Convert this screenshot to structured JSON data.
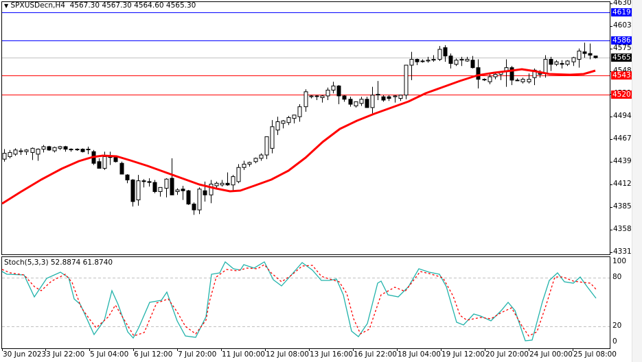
{
  "header": {
    "symbol": "SPXUSDecn,H4",
    "ohlc": "4567.30 4567.30 4564.60 4565.30",
    "title_full": "SPXUSDecn,H4  4567.30 4567.30 4564.60 4565.30"
  },
  "stochastic": {
    "label": "Stoch(5,3,3) 52.8874 61.8740",
    "levels": [
      "100",
      "80",
      "20",
      "0"
    ]
  },
  "price_axis": {
    "ticks": [
      "4630.20",
      "4603.00",
      "4575.80",
      "4548.60",
      "4521.40",
      "4494.20",
      "4467.00",
      "4439.80",
      "4412.60",
      "4385.40",
      "4358.20",
      "4331.00"
    ]
  },
  "price_tags": [
    {
      "label": "4619.59",
      "value": 4619.59,
      "color": "#0000ff",
      "kind": "resistance"
    },
    {
      "label": "4586.00",
      "value": 4586.0,
      "color": "#0000ff",
      "kind": "resistance"
    },
    {
      "label": "4565.30",
      "value": 4565.3,
      "color": "#000000",
      "kind": "current-price"
    },
    {
      "label": "4543.64",
      "value": 4543.64,
      "color": "#ff0000",
      "kind": "support"
    },
    {
      "label": "4520.28",
      "value": 4520.28,
      "color": "#ff0000",
      "kind": "support"
    }
  ],
  "time_axis": {
    "labels": [
      "30 Jun 2023",
      "3 Jul 22:00",
      "5 Jul 04:00",
      "6 Jul 12:00",
      "7 Jul 20:00",
      "11 Jul 00:00",
      "12 Jul 08:00",
      "13 Jul 16:00",
      "16 Jul 22:00",
      "18 Jul 04:00",
      "19 Jul 12:00",
      "20 Jul 20:00",
      "24 Jul 00:00",
      "25 Jul 08:00"
    ]
  },
  "colors": {
    "ma_line": "#ff0000",
    "stoch_main": "#20b2aa",
    "stoch_signal": "#ff0000",
    "bull_candle": "#ffffff",
    "bear_candle": "#000000",
    "grid_level": "#c0c0c0",
    "current_price_line": "#c0c0c0"
  },
  "chart_data": [
    {
      "type": "candlestick",
      "title": "SPXUSDecn,H4",
      "ylim": [
        4331.0,
        4630.2
      ],
      "yticks": [
        4630.2,
        4603.0,
        4575.8,
        4548.6,
        4521.4,
        4494.2,
        4467.0,
        4439.8,
        4412.6,
        4385.4,
        4358.2,
        4331.0
      ],
      "xtick_labels": [
        "30 Jun 2023",
        "3 Jul 22:00",
        "5 Jul 04:00",
        "6 Jul 12:00",
        "7 Jul 20:00",
        "11 Jul 00:00",
        "12 Jul 08:00",
        "13 Jul 16:00",
        "16 Jul 22:00",
        "18 Jul 04:00",
        "19 Jul 12:00",
        "20 Jul 20:00",
        "24 Jul 00:00",
        "25 Jul 08:00"
      ],
      "horizontal_lines": [
        {
          "value": 4619.59,
          "color": "#0000ff"
        },
        {
          "value": 4586.0,
          "color": "#0000ff"
        },
        {
          "value": 4565.3,
          "color": "#c0c0c0"
        },
        {
          "value": 4543.64,
          "color": "#ff0000"
        },
        {
          "value": 4520.28,
          "color": "#ff0000"
        }
      ],
      "candles_ohlc": [
        [
          4443,
          4455,
          4440,
          4450
        ],
        [
          4446,
          4454,
          4444,
          4451
        ],
        [
          4449,
          4456,
          4447,
          4454
        ],
        [
          4452,
          4456,
          4448,
          4453
        ],
        [
          4452,
          4455,
          4448,
          4454
        ],
        [
          4451,
          4457,
          4442,
          4456
        ],
        [
          4449,
          4456,
          4441,
          4455
        ],
        [
          4455,
          4460,
          4451,
          4458
        ],
        [
          4458,
          4459,
          4453,
          4454
        ],
        [
          4453,
          4458,
          4451,
          4457
        ],
        [
          4456,
          4459,
          4454,
          4458
        ],
        [
          4458,
          4459,
          4452,
          4455
        ],
        [
          4455,
          4456,
          4452,
          4455
        ],
        [
          4455,
          4456,
          4453,
          4455
        ],
        [
          4455,
          4456,
          4451,
          4452
        ],
        [
          4455,
          4458,
          4449,
          4455
        ],
        [
          4452,
          4454,
          4436,
          4438
        ],
        [
          4440,
          4444,
          4432,
          4432
        ],
        [
          4432,
          4452,
          4430,
          4446
        ],
        [
          4446,
          4452,
          4436,
          4445
        ],
        [
          4445,
          4446,
          4439,
          4440
        ],
        [
          4438,
          4440,
          4425,
          4425
        ],
        [
          4424,
          4425,
          4414,
          4418
        ],
        [
          4418,
          4419,
          4386,
          4392
        ],
        [
          4394,
          4424,
          4387,
          4417
        ],
        [
          4417,
          4419,
          4409,
          4416
        ],
        [
          4416,
          4420,
          4410,
          4415
        ],
        [
          4415,
          4418,
          4402,
          4404
        ],
        [
          4404,
          4408,
          4398,
          4409
        ],
        [
          4408,
          4420,
          4397,
          4419
        ],
        [
          4420,
          4444,
          4400,
          4400
        ],
        [
          4404,
          4408,
          4400,
          4406
        ],
        [
          4407,
          4411,
          4394,
          4405
        ],
        [
          4405,
          4406,
          4388,
          4389
        ],
        [
          4389,
          4391,
          4376,
          4382
        ],
        [
          4382,
          4409,
          4377,
          4407
        ],
        [
          4405,
          4416,
          4392,
          4400
        ],
        [
          4400,
          4418,
          4390,
          4413
        ],
        [
          4411,
          4416,
          4408,
          4414
        ],
        [
          4412,
          4418,
          4410,
          4414
        ],
        [
          4414,
          4427,
          4411,
          4412
        ],
        [
          4412,
          4424,
          4405,
          4422
        ],
        [
          4416,
          4437,
          4414,
          4433
        ],
        [
          4433,
          4441,
          4430,
          4437
        ],
        [
          4437,
          4440,
          4434,
          4439
        ],
        [
          4440,
          4445,
          4438,
          4444
        ],
        [
          4444,
          4450,
          4441,
          4448
        ],
        [
          4448,
          4468,
          4443,
          4470
        ],
        [
          4456,
          4490,
          4450,
          4482
        ],
        [
          4478,
          4494,
          4472,
          4488
        ],
        [
          4486,
          4490,
          4480,
          4489
        ],
        [
          4487,
          4495,
          4484,
          4493
        ],
        [
          4492,
          4496,
          4486,
          4496
        ],
        [
          4494,
          4509,
          4488,
          4506
        ],
        [
          4506,
          4527,
          4500,
          4524
        ],
        [
          4518,
          4520,
          4516,
          4519
        ],
        [
          4519,
          4520,
          4514,
          4519
        ],
        [
          4517,
          4520,
          4511,
          4519
        ],
        [
          4519,
          4529,
          4514,
          4526
        ],
        [
          4526,
          4536,
          4522,
          4531
        ],
        [
          4531,
          4532,
          4509,
          4519
        ],
        [
          4519,
          4520,
          4512,
          4515
        ],
        [
          4515,
          4518,
          4506,
          4509
        ],
        [
          4507,
          4512,
          4505,
          4512
        ],
        [
          4510,
          4518,
          4507,
          4515
        ],
        [
          4515,
          4518,
          4506,
          4505
        ],
        [
          4505,
          4530,
          4498,
          4520
        ],
        [
          4520,
          4537,
          4514,
          4521
        ],
        [
          4518,
          4520,
          4512,
          4514
        ],
        [
          4518,
          4520,
          4513,
          4516
        ],
        [
          4518,
          4520,
          4511,
          4519
        ],
        [
          4516,
          4520,
          4513,
          4520
        ],
        [
          4520,
          4551,
          4515,
          4556
        ],
        [
          4556,
          4572,
          4538,
          4563
        ],
        [
          4563,
          4564,
          4556,
          4560
        ],
        [
          4561,
          4563,
          4559,
          4561
        ],
        [
          4561,
          4566,
          4559,
          4562
        ],
        [
          4562,
          4568,
          4560,
          4563
        ],
        [
          4563,
          4579,
          4561,
          4575
        ],
        [
          4577,
          4580,
          4560,
          4567
        ],
        [
          4567,
          4570,
          4552,
          4558
        ],
        [
          4557,
          4564,
          4555,
          4562
        ],
        [
          4562,
          4566,
          4555,
          4563
        ],
        [
          4561,
          4566,
          4560,
          4563
        ],
        [
          4562,
          4567,
          4552,
          4553
        ],
        [
          4553,
          4563,
          4528,
          4539
        ],
        [
          4539,
          4540,
          4537,
          4539
        ],
        [
          4536,
          4545,
          4533,
          4542
        ],
        [
          4542,
          4548,
          4539,
          4545
        ],
        [
          4545,
          4549,
          4538,
          4548
        ],
        [
          4548,
          4563,
          4530,
          4553
        ],
        [
          4553,
          4555,
          4532,
          4538
        ],
        [
          4538,
          4540,
          4537,
          4538
        ],
        [
          4536,
          4541,
          4534,
          4539
        ],
        [
          4536,
          4546,
          4534,
          4539
        ],
        [
          4541,
          4552,
          4532,
          4550
        ],
        [
          4545,
          4550,
          4541,
          4546
        ],
        [
          4546,
          4568,
          4541,
          4563
        ],
        [
          4563,
          4566,
          4549,
          4557
        ],
        [
          4557,
          4562,
          4555,
          4560
        ],
        [
          4558,
          4562,
          4552,
          4557
        ],
        [
          4557,
          4562,
          4555,
          4561
        ],
        [
          4560,
          4566,
          4555,
          4565
        ],
        [
          4563,
          4576,
          4553,
          4573
        ],
        [
          4572,
          4583,
          4565,
          4570
        ],
        [
          4570,
          4582,
          4563,
          4568
        ],
        [
          4567,
          4567,
          4564,
          4565
        ]
      ],
      "moving_average": {
        "name": "MA",
        "color": "#ff0000",
        "approx_values_start_end": [
          4390,
          4552
        ]
      }
    },
    {
      "type": "line",
      "title": "Stoch(5,3,3) 52.8874 61.8740",
      "ylim": [
        0,
        100
      ],
      "yticks": [
        100,
        80,
        20,
        0
      ],
      "levels": [
        80,
        20
      ],
      "series": [
        {
          "name": "%K (main)",
          "color": "#20b2aa",
          "last": 52.8874
        },
        {
          "name": "%D (signal)",
          "color": "#ff0000",
          "style": "dashed",
          "last": 61.874
        }
      ]
    }
  ]
}
